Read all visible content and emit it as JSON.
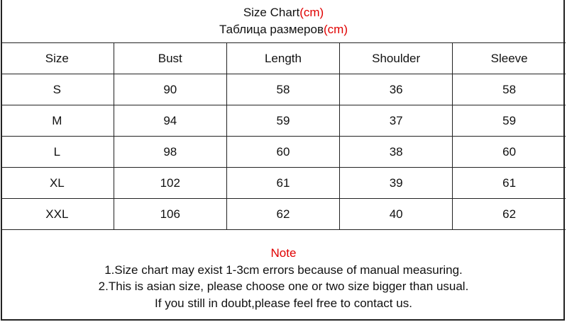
{
  "title": {
    "line1": "Size Chart",
    "line1_unit": "(cm)",
    "line2": "Таблица размеров",
    "line2_unit": "(cm)"
  },
  "table": {
    "headers": [
      "Size",
      "Bust",
      "Length",
      "Shoulder",
      "Sleeve"
    ],
    "rows": [
      [
        "S",
        "90",
        "58",
        "36",
        "58"
      ],
      [
        "M",
        "94",
        "59",
        "37",
        "59"
      ],
      [
        "L",
        "98",
        "60",
        "38",
        "60"
      ],
      [
        "XL",
        "102",
        "61",
        "39",
        "61"
      ],
      [
        "XXL",
        "106",
        "62",
        "40",
        "62"
      ]
    ]
  },
  "note": {
    "heading": "Note",
    "lines": [
      "1.Size chart may exist 1-3cm errors because of manual measuring.",
      "2.This is asian size, please choose one or two size bigger than usual.",
      "If you still in doubt,please feel free to contact us."
    ]
  },
  "colors": {
    "accent": "#e00000",
    "border": "#222222"
  }
}
